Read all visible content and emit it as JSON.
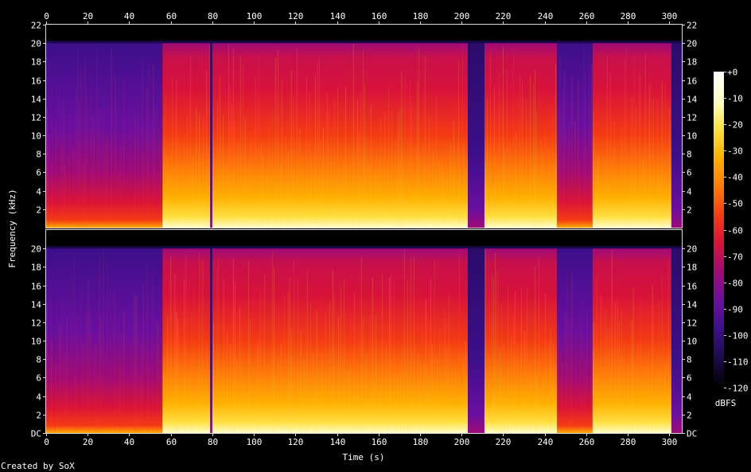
{
  "chart_data": {
    "type": "heatmap",
    "title": "",
    "xlabel": "Time (s)",
    "ylabel": "Frequency (kHz)",
    "xlim": [
      0,
      306
    ],
    "x_ticks": [
      0,
      20,
      40,
      60,
      80,
      100,
      120,
      140,
      160,
      180,
      200,
      220,
      240,
      260,
      280,
      300
    ],
    "channels": [
      {
        "ylim": [
          0,
          22
        ],
        "y_ticks": [
          {
            "v": 2,
            "label": "2"
          },
          {
            "v": 4,
            "label": "4"
          },
          {
            "v": 6,
            "label": "6"
          },
          {
            "v": 8,
            "label": "8"
          },
          {
            "v": 10,
            "label": "10"
          },
          {
            "v": 12,
            "label": "12"
          },
          {
            "v": 14,
            "label": "14"
          },
          {
            "v": 16,
            "label": "16"
          },
          {
            "v": 18,
            "label": "18"
          },
          {
            "v": 20,
            "label": "20"
          },
          {
            "v": 22,
            "label": "22"
          }
        ]
      },
      {
        "ylim": [
          0,
          22
        ],
        "y_ticks": [
          {
            "v": 0,
            "label": "DC"
          },
          {
            "v": 2,
            "label": "2"
          },
          {
            "v": 4,
            "label": "4"
          },
          {
            "v": 6,
            "label": "6"
          },
          {
            "v": 8,
            "label": "8"
          },
          {
            "v": 10,
            "label": "10"
          },
          {
            "v": 12,
            "label": "12"
          },
          {
            "v": 14,
            "label": "14"
          },
          {
            "v": 16,
            "label": "16"
          },
          {
            "v": 18,
            "label": "18"
          },
          {
            "v": 20,
            "label": "20"
          }
        ]
      }
    ],
    "cutoff_khz": 20,
    "segments": [
      {
        "t0": 0,
        "t1": 4,
        "level": "quiet"
      },
      {
        "t0": 4,
        "t1": 56,
        "level": "quiet"
      },
      {
        "t0": 56,
        "t1": 79,
        "level": "loud"
      },
      {
        "t0": 79,
        "t1": 80,
        "level": "silent"
      },
      {
        "t0": 80,
        "t1": 203,
        "level": "loud"
      },
      {
        "t0": 203,
        "t1": 211,
        "level": "silent"
      },
      {
        "t0": 211,
        "t1": 246,
        "level": "loud"
      },
      {
        "t0": 246,
        "t1": 263,
        "level": "quiet"
      },
      {
        "t0": 263,
        "t1": 301,
        "level": "loud"
      },
      {
        "t0": 301,
        "t1": 306,
        "level": "silent"
      }
    ],
    "colorbar": {
      "label": "dBFS",
      "range": [
        -120,
        0
      ],
      "ticks": [
        {
          "v": 0,
          "label": "+0"
        },
        {
          "v": -10,
          "label": "-10"
        },
        {
          "v": -20,
          "label": "-20"
        },
        {
          "v": -30,
          "label": "-30"
        },
        {
          "v": -40,
          "label": "-40"
        },
        {
          "v": -50,
          "label": "-50"
        },
        {
          "v": -60,
          "label": "-60"
        },
        {
          "v": -70,
          "label": "-70"
        },
        {
          "v": -80,
          "label": "-80"
        },
        {
          "v": -90,
          "label": "-90"
        },
        {
          "v": -100,
          "label": "-100"
        },
        {
          "v": -110,
          "label": "-110"
        },
        {
          "v": -120,
          "label": "-120"
        }
      ],
      "colors": [
        "#000000",
        "#1a0b4b",
        "#3c0f8a",
        "#6a0fa0",
        "#a00a78",
        "#d8123a",
        "#f43b14",
        "#ff7a08",
        "#ffb000",
        "#ffe040",
        "#ffffc8",
        "#ffffff"
      ]
    },
    "footer": "Created by SoX"
  }
}
